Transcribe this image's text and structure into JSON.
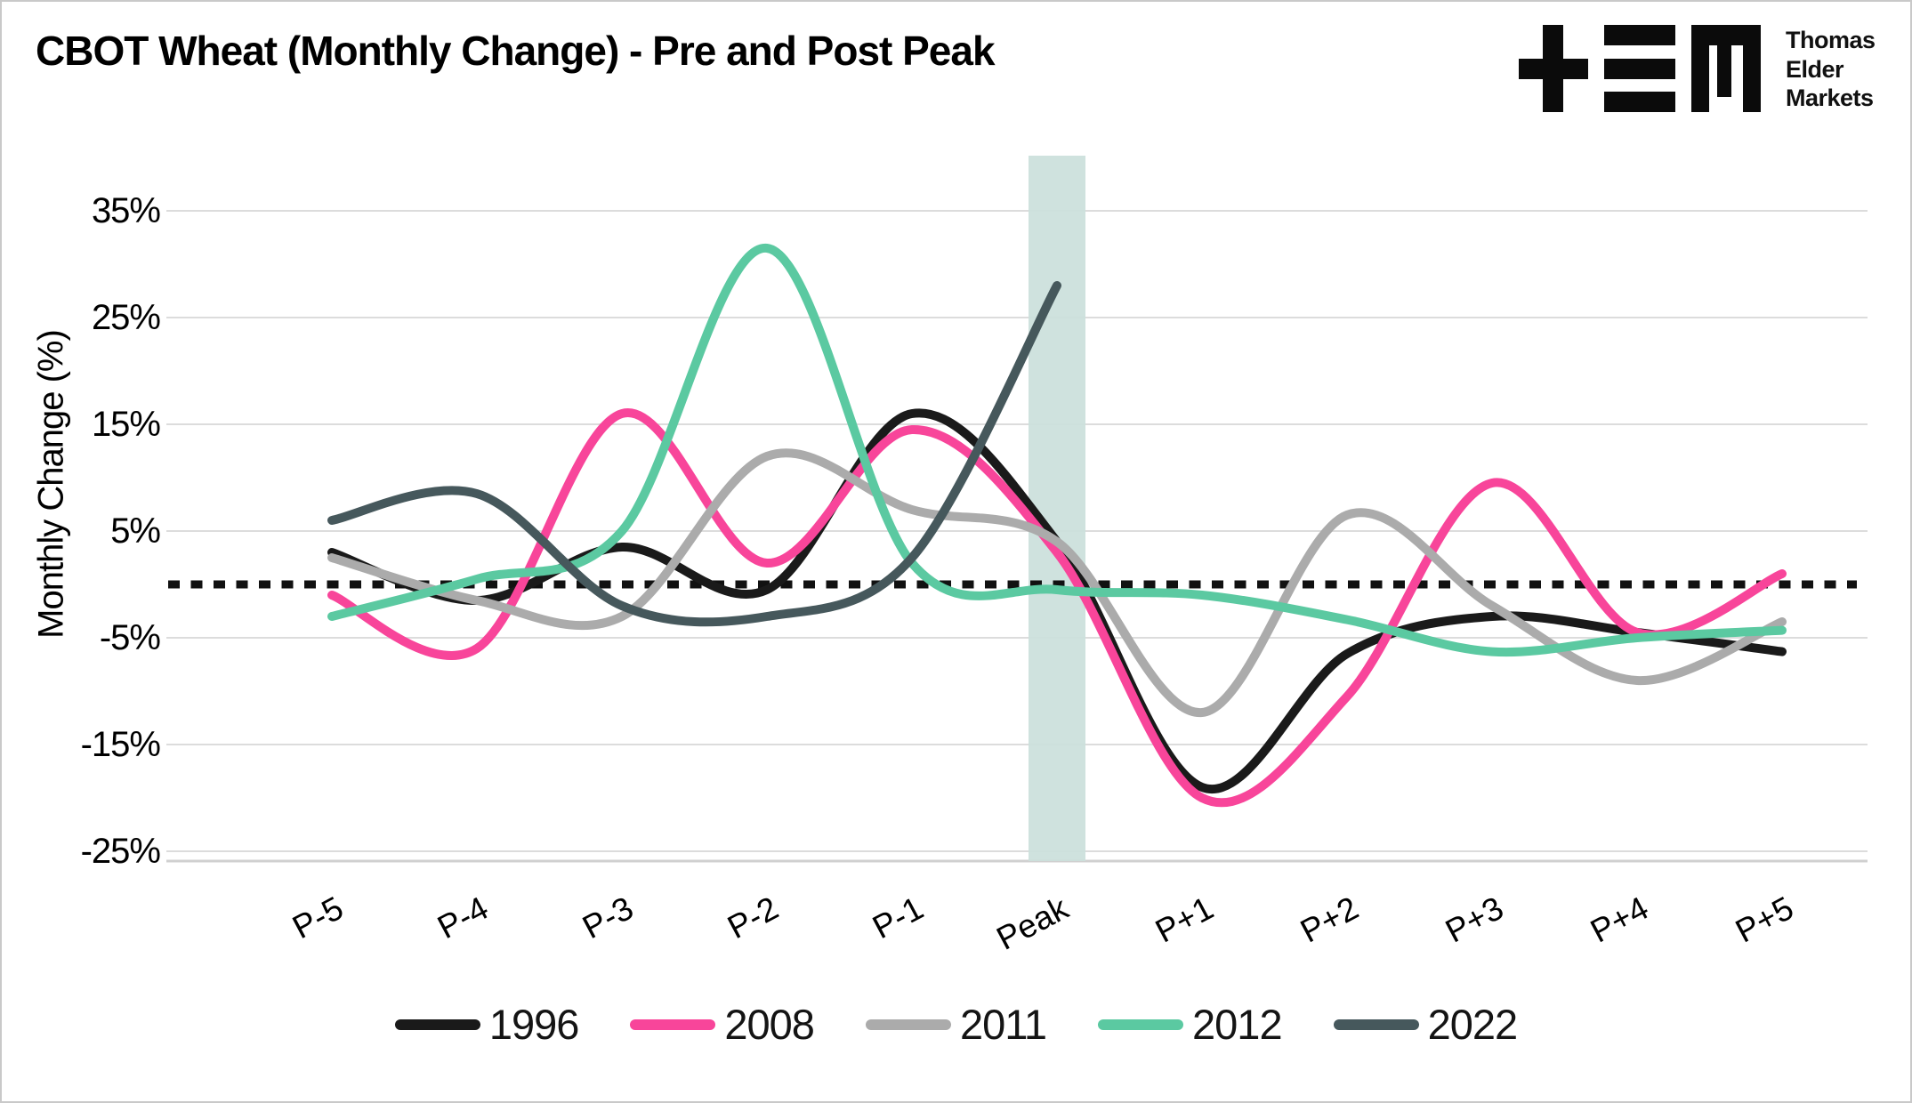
{
  "title": "CBOT Wheat (Monthly Change) - Pre and Post Peak",
  "logo": {
    "lines": [
      "Thomas",
      "Elder",
      "Markets"
    ]
  },
  "y_axis": {
    "title": "Monthly Change (%)",
    "ticks": [
      "35%",
      "25%",
      "15%",
      "5%",
      "-5%",
      "-15%",
      "-25%"
    ],
    "tick_values": [
      35,
      25,
      15,
      5,
      -5,
      -15,
      -25
    ]
  },
  "chart_data": {
    "type": "line",
    "title": "CBOT Wheat (Monthly Change) - Pre and Post Peak",
    "xlabel": "",
    "ylabel": "Monthly Change (%)",
    "categories": [
      "P-5",
      "P-4",
      "P-3",
      "P-2",
      "P-1",
      "Peak",
      "P+1",
      "P+2",
      "P+3",
      "P+4",
      "P+5"
    ],
    "ylim": [
      -26,
      42
    ],
    "grid": "horizontal",
    "legend_position": "bottom",
    "zero_line": {
      "style": "dotted",
      "color": "#111111",
      "value": 0
    },
    "peak_band": {
      "category": "Peak",
      "category_index": 5,
      "color": "#cbdfdb"
    },
    "series": [
      {
        "name": "1996",
        "color": "#1a1a1a",
        "values": [
          3,
          -1.5,
          3.5,
          -0.5,
          16,
          4,
          -19,
          -6.5,
          -3,
          -4.5,
          -6.3
        ]
      },
      {
        "name": "2008",
        "color": "#f8459a",
        "values": [
          -1,
          -6,
          16,
          2,
          14.5,
          3,
          -20,
          -10.5,
          9.5,
          -4.5,
          1
        ]
      },
      {
        "name": "2011",
        "color": "#ababab",
        "values": [
          2.5,
          -1.5,
          -3,
          12,
          7,
          4,
          -12,
          6.5,
          -2,
          -9,
          -3.5
        ]
      },
      {
        "name": "2012",
        "color": "#5bc9a1",
        "values": [
          -3,
          0.5,
          5,
          31.5,
          2,
          -0.5,
          -1,
          -3.3,
          -6.3,
          -5,
          -4.3
        ]
      },
      {
        "name": "2022",
        "color": "#46585c",
        "values": [
          6,
          8.5,
          -2,
          -3,
          2.5,
          28,
          null,
          null,
          null,
          null,
          null
        ]
      }
    ]
  }
}
